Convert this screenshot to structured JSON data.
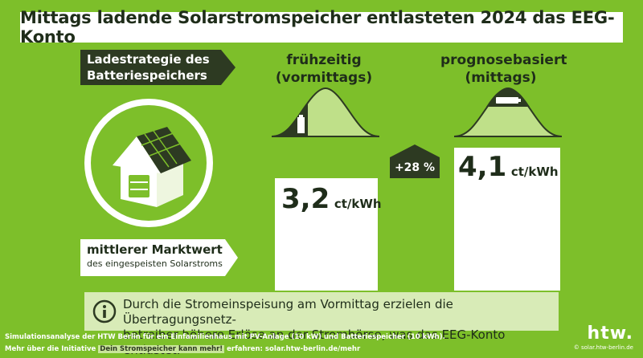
{
  "title": "Mittags ladende Solarstromspeicher entlasteten 2024 das EEG-Konto",
  "strategy_label_line1": "Ladestrategie des",
  "strategy_label_line2": "Batteriespeichers",
  "columns": [
    {
      "head_line1": "frühzeitig",
      "head_line2": "(vormittags)",
      "value": "3,2",
      "unit": "ct/kWh"
    },
    {
      "head_line1": "prognosebasiert",
      "head_line2": "(mittags)",
      "value": "4,1",
      "unit": "ct/kWh"
    }
  ],
  "chart_data": {
    "type": "bar",
    "categories": [
      "frühzeitig (vormittags)",
      "prognosebasiert (mittags)"
    ],
    "values": [
      3.2,
      4.1
    ],
    "ylabel": "mittlerer Marktwert des eingespeisten Solarstroms",
    "unit": "ct/kWh"
  },
  "increase_label": "+28 %",
  "market_label_line1": "mittlerer Marktwert",
  "market_label_line2": "des eingespeisten Solarstroms",
  "info_line1": "Durch die Stromeinspeisung am Vormittag erzielen die Übertragungsnetz-",
  "info_line2": "betreiber höhere Erlöse an der Strombörse, was das EEG-Konto entlastet.",
  "footer_line1": "Simulationsanalyse der HTW Berlin für ein Einfamilienhaus mit PV-Anlage (10 kW) und Batteriespeicher (10 kWh).",
  "footer_line2_pre": "Mehr über die Initiative",
  "footer_line2_highlight": "Dein Stromspeicher kann mehr!",
  "footer_line2_post": "erfahren: solar.htw-berlin.de/mehr",
  "brand_logo": "htw.",
  "brand_url": "© solar.htw-berlin.de",
  "colors": {
    "background": "#7dbf2a",
    "dark": "#2d3a22",
    "light": "#d8ebb7",
    "curve_fill": "#bfe089"
  }
}
